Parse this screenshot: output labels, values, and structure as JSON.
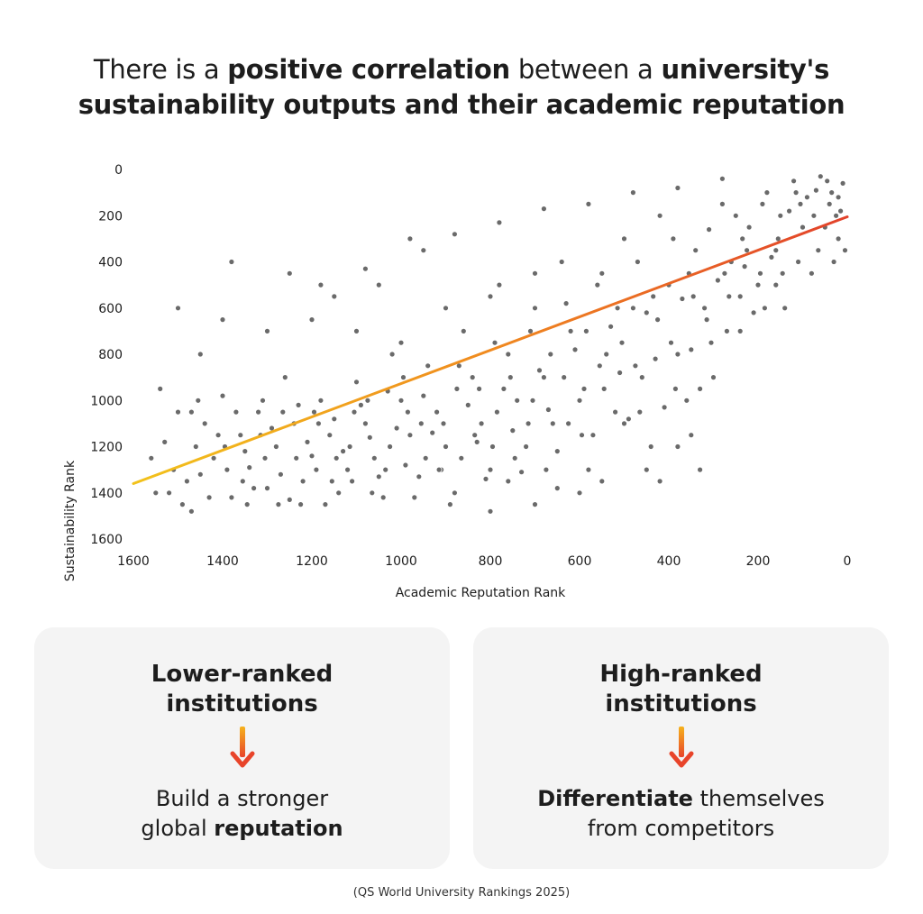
{
  "headline": {
    "part1": "There is a ",
    "bold1": "positive correlation",
    "part2": " between a ",
    "bold2": "university's",
    "line2": "sustainability outputs and their academic reputation"
  },
  "chart_data": {
    "type": "scatter",
    "xlabel": "Academic Reputation Rank",
    "ylabel": "Sustainability Rank",
    "xlim": [
      1600,
      0
    ],
    "ylim": [
      1600,
      0
    ],
    "x_inverted": true,
    "y_inverted": true,
    "xticks": [
      "1600",
      "1400",
      "1200",
      "1000",
      "800",
      "600",
      "400",
      "200",
      "0"
    ],
    "yticks": [
      "0",
      "200",
      "400",
      "600",
      "800",
      "1000",
      "1200",
      "1400",
      "1600"
    ],
    "grid": false,
    "point_color": "#6a6a6a",
    "trendline": {
      "from": [
        1600,
        1360
      ],
      "to": [
        0,
        205
      ],
      "gradient": [
        "#f2c21b",
        "#f08a1f",
        "#e2412a"
      ]
    },
    "series": [
      {
        "points": [
          [
            1530,
            1180
          ],
          [
            1510,
            1300
          ],
          [
            1490,
            1450
          ],
          [
            1470,
            1050
          ],
          [
            1450,
            1320
          ],
          [
            1420,
            1250
          ],
          [
            1400,
            980
          ],
          [
            1380,
            1420
          ],
          [
            1360,
            1150
          ],
          [
            1340,
            1290
          ],
          [
            1320,
            1050
          ],
          [
            1300,
            1380
          ],
          [
            1280,
            1200
          ],
          [
            1260,
            900
          ],
          [
            1240,
            1100
          ],
          [
            1220,
            1350
          ],
          [
            1200,
            1240
          ],
          [
            1180,
            1000
          ],
          [
            1160,
            1150
          ],
          [
            1140,
            1400
          ],
          [
            1120,
            1300
          ],
          [
            1100,
            920
          ],
          [
            1080,
            1100
          ],
          [
            1060,
            1250
          ],
          [
            1040,
            1420
          ],
          [
            1020,
            800
          ],
          [
            1000,
            1000
          ],
          [
            980,
            1150
          ],
          [
            960,
            1330
          ],
          [
            940,
            850
          ],
          [
            920,
            1050
          ],
          [
            900,
            1200
          ],
          [
            880,
            1400
          ],
          [
            860,
            700
          ],
          [
            840,
            900
          ],
          [
            820,
            1100
          ],
          [
            800,
            1300
          ],
          [
            780,
            500
          ],
          [
            760,
            800
          ],
          [
            740,
            1000
          ],
          [
            720,
            1200
          ],
          [
            700,
            600
          ],
          [
            680,
            900
          ],
          [
            660,
            1100
          ],
          [
            640,
            400
          ],
          [
            620,
            700
          ],
          [
            600,
            1000
          ],
          [
            580,
            1300
          ],
          [
            560,
            500
          ],
          [
            540,
            800
          ],
          [
            520,
            1050
          ],
          [
            500,
            300
          ],
          [
            480,
            600
          ],
          [
            460,
            900
          ],
          [
            440,
            1200
          ],
          [
            420,
            200
          ],
          [
            400,
            500
          ],
          [
            380,
            800
          ],
          [
            360,
            1000
          ],
          [
            340,
            350
          ],
          [
            320,
            600
          ],
          [
            300,
            900
          ],
          [
            280,
            150
          ],
          [
            260,
            400
          ],
          [
            240,
            700
          ],
          [
            220,
            250
          ],
          [
            200,
            500
          ],
          [
            180,
            100
          ],
          [
            160,
            350
          ],
          [
            140,
            600
          ],
          [
            120,
            50
          ],
          [
            100,
            250
          ],
          [
            80,
            450
          ],
          [
            60,
            30
          ],
          [
            40,
            150
          ],
          [
            20,
            300
          ],
          [
            10,
            60
          ],
          [
            30,
            400
          ],
          [
            90,
            120
          ],
          [
            150,
            200
          ],
          [
            1500,
            1050
          ],
          [
            1460,
            1200
          ],
          [
            1430,
            1420
          ],
          [
            1410,
            1150
          ],
          [
            1390,
            1300
          ],
          [
            1350,
            1220
          ],
          [
            1330,
            1380
          ],
          [
            1310,
            1000
          ],
          [
            1290,
            1120
          ],
          [
            1270,
            1320
          ],
          [
            1250,
            1430
          ],
          [
            1230,
            1020
          ],
          [
            1210,
            1180
          ],
          [
            1190,
            1300
          ],
          [
            1170,
            1450
          ],
          [
            1150,
            1080
          ],
          [
            1130,
            1220
          ],
          [
            1110,
            1350
          ],
          [
            1090,
            1020
          ],
          [
            1070,
            1160
          ],
          [
            1050,
            1330
          ],
          [
            1030,
            960
          ],
          [
            1010,
            1120
          ],
          [
            990,
            1280
          ],
          [
            970,
            1420
          ],
          [
            950,
            980
          ],
          [
            930,
            1140
          ],
          [
            910,
            1300
          ],
          [
            890,
            1450
          ],
          [
            870,
            850
          ],
          [
            850,
            1020
          ],
          [
            830,
            1180
          ],
          [
            810,
            1340
          ],
          [
            790,
            750
          ],
          [
            770,
            950
          ],
          [
            750,
            1130
          ],
          [
            730,
            1310
          ],
          [
            710,
            700
          ],
          [
            690,
            870
          ],
          [
            670,
            1040
          ],
          [
            650,
            1220
          ],
          [
            630,
            580
          ],
          [
            610,
            780
          ],
          [
            590,
            950
          ],
          [
            570,
            1150
          ],
          [
            550,
            450
          ],
          [
            530,
            680
          ],
          [
            510,
            880
          ],
          [
            490,
            1080
          ],
          [
            470,
            400
          ],
          [
            450,
            620
          ],
          [
            430,
            820
          ],
          [
            410,
            1030
          ],
          [
            390,
            300
          ],
          [
            370,
            560
          ],
          [
            350,
            780
          ],
          [
            330,
            950
          ],
          [
            310,
            260
          ],
          [
            290,
            480
          ],
          [
            270,
            700
          ],
          [
            250,
            200
          ],
          [
            230,
            420
          ],
          [
            210,
            620
          ],
          [
            190,
            150
          ],
          [
            170,
            380
          ],
          [
            130,
            180
          ],
          [
            110,
            400
          ],
          [
            70,
            90
          ],
          [
            50,
            250
          ],
          [
            25,
            200
          ],
          [
            1540,
            950
          ],
          [
            1480,
            1350
          ],
          [
            1440,
            1100
          ],
          [
            1370,
            1050
          ],
          [
            1345,
            1450
          ],
          [
            1305,
            1250
          ],
          [
            1265,
            1050
          ],
          [
            1225,
            1450
          ],
          [
            1185,
            1100
          ],
          [
            1145,
            1250
          ],
          [
            1105,
            1050
          ],
          [
            1065,
            1400
          ],
          [
            1025,
            1200
          ],
          [
            985,
            1050
          ],
          [
            945,
            1250
          ],
          [
            905,
            1100
          ],
          [
            865,
            1250
          ],
          [
            825,
            950
          ],
          [
            785,
            1050
          ],
          [
            745,
            1250
          ],
          [
            705,
            1000
          ],
          [
            665,
            800
          ],
          [
            625,
            1100
          ],
          [
            585,
            700
          ],
          [
            545,
            950
          ],
          [
            505,
            750
          ],
          [
            465,
            1050
          ],
          [
            425,
            650
          ],
          [
            385,
            950
          ],
          [
            345,
            550
          ],
          [
            305,
            750
          ],
          [
            265,
            550
          ],
          [
            225,
            350
          ],
          [
            185,
            600
          ],
          [
            145,
            450
          ],
          [
            105,
            150
          ],
          [
            65,
            350
          ],
          [
            35,
            100
          ],
          [
            15,
            180
          ],
          [
            5,
            350
          ],
          [
            1520,
            1400
          ],
          [
            1455,
            1000
          ],
          [
            1395,
            1200
          ],
          [
            1355,
            1350
          ],
          [
            1315,
            1150
          ],
          [
            1275,
            1450
          ],
          [
            1235,
            1250
          ],
          [
            1195,
            1050
          ],
          [
            1155,
            1350
          ],
          [
            1115,
            1200
          ],
          [
            1075,
            1000
          ],
          [
            1035,
            1300
          ],
          [
            995,
            900
          ],
          [
            955,
            1100
          ],
          [
            915,
            1300
          ],
          [
            875,
            950
          ],
          [
            835,
            1150
          ],
          [
            795,
            1200
          ],
          [
            755,
            900
          ],
          [
            715,
            1100
          ],
          [
            675,
            1300
          ],
          [
            635,
            900
          ],
          [
            595,
            1150
          ],
          [
            555,
            850
          ],
          [
            515,
            600
          ],
          [
            475,
            850
          ],
          [
            435,
            550
          ],
          [
            395,
            750
          ],
          [
            355,
            450
          ],
          [
            315,
            650
          ],
          [
            275,
            450
          ],
          [
            235,
            300
          ],
          [
            195,
            450
          ],
          [
            155,
            300
          ],
          [
            115,
            100
          ],
          [
            75,
            200
          ],
          [
            45,
            50
          ],
          [
            20,
            120
          ],
          [
            160,
            500
          ],
          [
            240,
            550
          ],
          [
            600,
            1400
          ],
          [
            700,
            1450
          ],
          [
            800,
            1480
          ],
          [
            550,
            1350
          ],
          [
            450,
            1300
          ],
          [
            350,
            1150
          ],
          [
            1000,
            750
          ],
          [
            1100,
            700
          ],
          [
            1200,
            650
          ],
          [
            900,
            600
          ],
          [
            800,
            550
          ],
          [
            700,
            450
          ],
          [
            950,
            350
          ],
          [
            1050,
            500
          ],
          [
            1150,
            550
          ],
          [
            1300,
            700
          ],
          [
            1400,
            650
          ],
          [
            1450,
            800
          ],
          [
            1380,
            400
          ],
          [
            1250,
            450
          ],
          [
            1500,
            600
          ],
          [
            1550,
            1400
          ],
          [
            1560,
            1250
          ],
          [
            1470,
            1480
          ],
          [
            1180,
            500
          ],
          [
            1080,
            430
          ],
          [
            980,
            300
          ],
          [
            880,
            280
          ],
          [
            780,
            230
          ],
          [
            680,
            170
          ],
          [
            580,
            150
          ],
          [
            480,
            100
          ],
          [
            380,
            80
          ],
          [
            280,
            40
          ],
          [
            420,
            1350
          ],
          [
            380,
            1200
          ],
          [
            330,
            1300
          ],
          [
            500,
            1100
          ],
          [
            650,
            1380
          ],
          [
            760,
            1350
          ]
        ]
      }
    ]
  },
  "cards": {
    "left": {
      "heading_line1": "Lower-ranked",
      "heading_line2": "institutions",
      "body_line1": "Build a stronger",
      "body_line2_a": "global ",
      "body_line2_b": "reputation"
    },
    "right": {
      "heading_line1": "High-ranked",
      "heading_line2": "institutions",
      "body_line1_b": "Differentiate",
      "body_line1_a": " themselves",
      "body_line2": "from competitors"
    },
    "arrow_icon": "arrow-down-icon",
    "arrow_colors": [
      "#f6b21c",
      "#e8442a"
    ]
  },
  "source": "(QS World University Rankings 2025)"
}
